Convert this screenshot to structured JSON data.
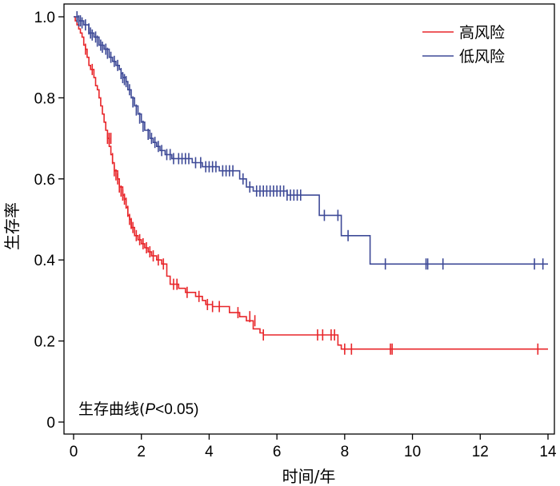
{
  "chart_data": {
    "type": "line",
    "title": "",
    "xlabel": "时间/年",
    "ylabel": "生存率",
    "xlim": [
      0,
      14
    ],
    "ylim": [
      0,
      1.0
    ],
    "x_ticks": [
      "0",
      "2",
      "4",
      "6",
      "8",
      "10",
      "12",
      "14"
    ],
    "y_ticks": [
      "0",
      "0.2",
      "0.4",
      "0.6",
      "0.8",
      "1.0"
    ],
    "grid": false,
    "legend_position": "top-right",
    "annotation": {
      "prefix": "生存曲线(",
      "p": "P",
      "suffix": "<0.05)"
    },
    "series": [
      {
        "name": "高风险",
        "color": "#e8262a",
        "steps": [
          [
            0,
            1.0
          ],
          [
            0.05,
            0.99
          ],
          [
            0.1,
            0.98
          ],
          [
            0.15,
            0.97
          ],
          [
            0.2,
            0.96
          ],
          [
            0.25,
            0.95
          ],
          [
            0.3,
            0.93
          ],
          [
            0.35,
            0.92
          ],
          [
            0.4,
            0.9
          ],
          [
            0.45,
            0.88
          ],
          [
            0.5,
            0.87
          ],
          [
            0.6,
            0.85
          ],
          [
            0.65,
            0.83
          ],
          [
            0.7,
            0.82
          ],
          [
            0.75,
            0.8
          ],
          [
            0.8,
            0.78
          ],
          [
            0.85,
            0.76
          ],
          [
            0.9,
            0.74
          ],
          [
            0.95,
            0.72
          ],
          [
            1.0,
            0.7
          ],
          [
            1.05,
            0.68
          ],
          [
            1.1,
            0.66
          ],
          [
            1.15,
            0.64
          ],
          [
            1.2,
            0.62
          ],
          [
            1.3,
            0.6
          ],
          [
            1.35,
            0.58
          ],
          [
            1.45,
            0.56
          ],
          [
            1.5,
            0.55
          ],
          [
            1.55,
            0.53
          ],
          [
            1.6,
            0.51
          ],
          [
            1.65,
            0.5
          ],
          [
            1.7,
            0.48
          ],
          [
            1.8,
            0.46
          ],
          [
            1.9,
            0.45
          ],
          [
            2.0,
            0.44
          ],
          [
            2.1,
            0.43
          ],
          [
            2.2,
            0.42
          ],
          [
            2.3,
            0.41
          ],
          [
            2.45,
            0.4
          ],
          [
            2.6,
            0.39
          ],
          [
            2.75,
            0.36
          ],
          [
            2.85,
            0.34
          ],
          [
            3.1,
            0.33
          ],
          [
            3.3,
            0.32
          ],
          [
            3.6,
            0.31
          ],
          [
            3.8,
            0.3
          ],
          [
            3.9,
            0.29
          ],
          [
            4.1,
            0.285
          ],
          [
            4.6,
            0.27
          ],
          [
            4.9,
            0.26
          ],
          [
            5.1,
            0.25
          ],
          [
            5.3,
            0.23
          ],
          [
            5.5,
            0.22
          ],
          [
            5.6,
            0.215
          ],
          [
            7.8,
            0.19
          ],
          [
            7.9,
            0.18
          ],
          [
            14,
            0.18
          ]
        ],
        "censored": [
          [
            0.35,
            0.92
          ],
          [
            0.55,
            0.87
          ],
          [
            1.0,
            0.7
          ],
          [
            1.05,
            0.7
          ],
          [
            1.1,
            0.7
          ],
          [
            1.15,
            0.65
          ],
          [
            1.2,
            0.62
          ],
          [
            1.25,
            0.61
          ],
          [
            1.3,
            0.6
          ],
          [
            1.35,
            0.58
          ],
          [
            1.4,
            0.57
          ],
          [
            1.45,
            0.56
          ],
          [
            1.5,
            0.55
          ],
          [
            1.55,
            0.54
          ],
          [
            1.6,
            0.52
          ],
          [
            1.65,
            0.5
          ],
          [
            1.7,
            0.49
          ],
          [
            1.75,
            0.48
          ],
          [
            1.85,
            0.46
          ],
          [
            1.95,
            0.45
          ],
          [
            2.05,
            0.44
          ],
          [
            2.15,
            0.43
          ],
          [
            2.25,
            0.42
          ],
          [
            2.35,
            0.41
          ],
          [
            2.5,
            0.4
          ],
          [
            2.65,
            0.39
          ],
          [
            2.95,
            0.34
          ],
          [
            3.05,
            0.34
          ],
          [
            3.35,
            0.32
          ],
          [
            3.7,
            0.31
          ],
          [
            3.95,
            0.29
          ],
          [
            4.1,
            0.285
          ],
          [
            4.3,
            0.285
          ],
          [
            4.85,
            0.27
          ],
          [
            5.2,
            0.26
          ],
          [
            5.35,
            0.25
          ],
          [
            5.6,
            0.215
          ],
          [
            7.2,
            0.215
          ],
          [
            7.35,
            0.215
          ],
          [
            7.6,
            0.215
          ],
          [
            7.7,
            0.215
          ],
          [
            8.0,
            0.18
          ],
          [
            8.2,
            0.18
          ],
          [
            9.35,
            0.18
          ],
          [
            9.4,
            0.18
          ],
          [
            13.7,
            0.18
          ]
        ]
      },
      {
        "name": "低风险",
        "color": "#3e4a97",
        "steps": [
          [
            0,
            1.0
          ],
          [
            0.15,
            0.99
          ],
          [
            0.3,
            0.98
          ],
          [
            0.45,
            0.96
          ],
          [
            0.6,
            0.95
          ],
          [
            0.75,
            0.93
          ],
          [
            0.9,
            0.92
          ],
          [
            1.05,
            0.9
          ],
          [
            1.15,
            0.89
          ],
          [
            1.25,
            0.88
          ],
          [
            1.35,
            0.87
          ],
          [
            1.4,
            0.86
          ],
          [
            1.45,
            0.85
          ],
          [
            1.55,
            0.84
          ],
          [
            1.6,
            0.82
          ],
          [
            1.7,
            0.8
          ],
          [
            1.8,
            0.78
          ],
          [
            1.9,
            0.76
          ],
          [
            2.0,
            0.74
          ],
          [
            2.1,
            0.72
          ],
          [
            2.25,
            0.7
          ],
          [
            2.35,
            0.69
          ],
          [
            2.45,
            0.68
          ],
          [
            2.55,
            0.67
          ],
          [
            2.7,
            0.66
          ],
          [
            2.9,
            0.65
          ],
          [
            3.5,
            0.64
          ],
          [
            3.8,
            0.63
          ],
          [
            4.3,
            0.62
          ],
          [
            4.9,
            0.6
          ],
          [
            5.1,
            0.58
          ],
          [
            5.3,
            0.57
          ],
          [
            6.3,
            0.56
          ],
          [
            7.25,
            0.51
          ],
          [
            7.9,
            0.46
          ],
          [
            8.15,
            0.46
          ],
          [
            8.75,
            0.39
          ],
          [
            14,
            0.39
          ]
        ],
        "censored": [
          [
            0.1,
            1.0
          ],
          [
            0.15,
            0.99
          ],
          [
            0.2,
            0.99
          ],
          [
            0.25,
            0.985
          ],
          [
            0.35,
            0.98
          ],
          [
            0.45,
            0.97
          ],
          [
            0.5,
            0.96
          ],
          [
            0.55,
            0.955
          ],
          [
            0.65,
            0.95
          ],
          [
            0.7,
            0.94
          ],
          [
            0.8,
            0.93
          ],
          [
            0.85,
            0.925
          ],
          [
            0.95,
            0.92
          ],
          [
            1.0,
            0.91
          ],
          [
            1.1,
            0.9
          ],
          [
            1.2,
            0.89
          ],
          [
            1.3,
            0.88
          ],
          [
            1.4,
            0.86
          ],
          [
            1.45,
            0.85
          ],
          [
            1.5,
            0.845
          ],
          [
            1.55,
            0.84
          ],
          [
            1.65,
            0.82
          ],
          [
            1.75,
            0.79
          ],
          [
            1.85,
            0.77
          ],
          [
            1.95,
            0.75
          ],
          [
            2.05,
            0.73
          ],
          [
            2.2,
            0.71
          ],
          [
            2.3,
            0.7
          ],
          [
            2.4,
            0.69
          ],
          [
            2.5,
            0.68
          ],
          [
            2.6,
            0.67
          ],
          [
            2.75,
            0.66
          ],
          [
            2.85,
            0.66
          ],
          [
            2.95,
            0.65
          ],
          [
            3.1,
            0.65
          ],
          [
            3.2,
            0.65
          ],
          [
            3.3,
            0.65
          ],
          [
            3.4,
            0.65
          ],
          [
            3.6,
            0.64
          ],
          [
            3.75,
            0.64
          ],
          [
            3.9,
            0.63
          ],
          [
            4.0,
            0.63
          ],
          [
            4.1,
            0.63
          ],
          [
            4.2,
            0.63
          ],
          [
            4.4,
            0.62
          ],
          [
            4.5,
            0.62
          ],
          [
            4.6,
            0.62
          ],
          [
            4.7,
            0.62
          ],
          [
            5.0,
            0.6
          ],
          [
            5.2,
            0.58
          ],
          [
            5.4,
            0.57
          ],
          [
            5.5,
            0.57
          ],
          [
            5.6,
            0.57
          ],
          [
            5.7,
            0.57
          ],
          [
            5.8,
            0.57
          ],
          [
            5.9,
            0.57
          ],
          [
            6.0,
            0.57
          ],
          [
            6.1,
            0.57
          ],
          [
            6.2,
            0.57
          ],
          [
            6.3,
            0.56
          ],
          [
            6.4,
            0.56
          ],
          [
            6.5,
            0.56
          ],
          [
            6.6,
            0.56
          ],
          [
            6.7,
            0.56
          ],
          [
            7.4,
            0.51
          ],
          [
            7.8,
            0.51
          ],
          [
            8.1,
            0.46
          ],
          [
            9.2,
            0.39
          ],
          [
            10.4,
            0.39
          ],
          [
            10.45,
            0.39
          ],
          [
            10.9,
            0.39
          ],
          [
            13.6,
            0.39
          ],
          [
            13.85,
            0.39
          ]
        ]
      }
    ]
  }
}
